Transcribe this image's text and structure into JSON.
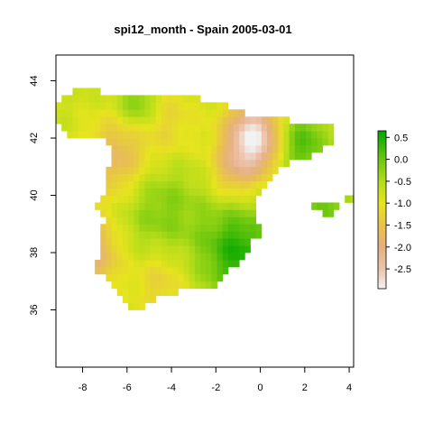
{
  "chart_data": {
    "type": "heatmap",
    "title": "spi12_month - Spain 2005-03-01",
    "xlabel": "",
    "ylabel": "",
    "xlim": [
      -9.2,
      4.2
    ],
    "ylim": [
      34.0,
      44.9
    ],
    "x_ticks": [
      -8,
      -6,
      -4,
      -2,
      0,
      2,
      4
    ],
    "y_ticks": [
      36,
      38,
      40,
      42,
      44
    ],
    "x_tick_labels": [
      "-8",
      "-6",
      "-4",
      "-2",
      "0",
      "2",
      "4"
    ],
    "y_tick_labels": [
      "36",
      "38",
      "40",
      "42",
      "44"
    ],
    "grid": false,
    "legend": {
      "type": "colorbar",
      "placement": "right",
      "range": [
        -2.95,
        0.65
      ],
      "ticks": [
        0.5,
        0.0,
        -0.5,
        -1.0,
        -1.5,
        -2.0,
        -2.5
      ],
      "tick_labels": [
        "0.5",
        "0.0",
        "-0.5",
        "-1.0",
        "-1.5",
        "-2.0",
        "-2.5"
      ],
      "colors": [
        {
          "value": -2.95,
          "color": "#f2f2f2"
        },
        {
          "value": -2.5,
          "color": "#ecc3ad"
        },
        {
          "value": -2.0,
          "color": "#e6b07e"
        },
        {
          "value": -1.5,
          "color": "#e8c34a"
        },
        {
          "value": -1.0,
          "color": "#e6e41e"
        },
        {
          "value": -0.5,
          "color": "#b2dc1a"
        },
        {
          "value": 0.0,
          "color": "#6cc70e"
        },
        {
          "value": 0.65,
          "color": "#00a600"
        }
      ]
    },
    "cell_size_deg": 0.25,
    "regions": [
      {
        "name": "peninsula",
        "polygon": [
          [
            -9.3,
            43.2
          ],
          [
            -8.6,
            43.6
          ],
          [
            -7.8,
            43.8
          ],
          [
            -7.0,
            43.6
          ],
          [
            -6.0,
            43.6
          ],
          [
            -5.0,
            43.5
          ],
          [
            -4.0,
            43.45
          ],
          [
            -3.0,
            43.4
          ],
          [
            -2.0,
            43.3
          ],
          [
            -1.6,
            43.3
          ],
          [
            -1.3,
            43.1
          ],
          [
            -0.5,
            42.8
          ],
          [
            0.5,
            42.7
          ],
          [
            1.4,
            42.6
          ],
          [
            2.2,
            42.5
          ],
          [
            3.2,
            42.4
          ],
          [
            3.3,
            41.9
          ],
          [
            2.6,
            41.5
          ],
          [
            1.6,
            41.2
          ],
          [
            0.8,
            40.9
          ],
          [
            0.5,
            40.5
          ],
          [
            0.0,
            40.0
          ],
          [
            -0.3,
            39.5
          ],
          [
            -0.1,
            39.0
          ],
          [
            0.2,
            38.8
          ],
          [
            -0.5,
            38.3
          ],
          [
            -0.7,
            37.8
          ],
          [
            -1.3,
            37.5
          ],
          [
            -1.8,
            37.0
          ],
          [
            -2.2,
            36.7
          ],
          [
            -3.0,
            36.7
          ],
          [
            -4.0,
            36.6
          ],
          [
            -4.6,
            36.5
          ],
          [
            -5.3,
            36.1
          ],
          [
            -5.8,
            36.0
          ],
          [
            -6.2,
            36.4
          ],
          [
            -6.5,
            36.8
          ],
          [
            -7.0,
            37.2
          ],
          [
            -7.4,
            37.2
          ],
          [
            -7.5,
            37.6
          ],
          [
            -7.1,
            38.1
          ],
          [
            -7.3,
            38.6
          ],
          [
            -7.0,
            39.1
          ],
          [
            -7.5,
            39.6
          ],
          [
            -7.0,
            40.0
          ],
          [
            -7.0,
            40.5
          ],
          [
            -6.8,
            41.0
          ],
          [
            -6.5,
            41.5
          ],
          [
            -7.0,
            41.9
          ],
          [
            -8.2,
            41.9
          ],
          [
            -8.8,
            42.1
          ],
          [
            -9.0,
            42.5
          ],
          [
            -9.3,
            42.9
          ]
        ]
      },
      {
        "name": "mallorca",
        "polygon": [
          [
            2.3,
            39.6
          ],
          [
            3.0,
            39.9
          ],
          [
            3.5,
            39.7
          ],
          [
            3.2,
            39.3
          ],
          [
            2.7,
            39.4
          ]
        ]
      },
      {
        "name": "menorca",
        "polygon": [
          [
            3.8,
            40.0
          ],
          [
            4.3,
            40.1
          ],
          [
            4.3,
            39.8
          ],
          [
            3.9,
            39.85
          ]
        ]
      }
    ],
    "field_base": -0.75,
    "field_features": [
      {
        "lon": -0.3,
        "lat": 42.0,
        "amp": -2.2,
        "sigma": 0.9
      },
      {
        "lon": -7.6,
        "lat": 38.0,
        "amp": -1.2,
        "sigma": 0.9
      },
      {
        "lon": -6.5,
        "lat": 41.3,
        "amp": -1.0,
        "sigma": 1.0
      },
      {
        "lon": -4.2,
        "lat": 42.5,
        "amp": -0.5,
        "sigma": 1.0
      },
      {
        "lon": -1.3,
        "lat": 40.8,
        "amp": -0.7,
        "sigma": 0.7
      },
      {
        "lon": -1.0,
        "lat": 38.0,
        "amp": 1.2,
        "sigma": 1.2
      },
      {
        "lon": -4.5,
        "lat": 39.5,
        "amp": 0.6,
        "sigma": 1.3
      },
      {
        "lon": 1.8,
        "lat": 41.8,
        "amp": 1.0,
        "sigma": 0.8
      },
      {
        "lon": -5.5,
        "lat": 43.2,
        "amp": 0.8,
        "sigma": 0.6
      },
      {
        "lon": 3.0,
        "lat": 39.6,
        "amp": 0.7,
        "sigma": 0.8
      },
      {
        "lon": -4.5,
        "lat": 37.0,
        "amp": -0.6,
        "sigma": 0.9
      }
    ]
  }
}
